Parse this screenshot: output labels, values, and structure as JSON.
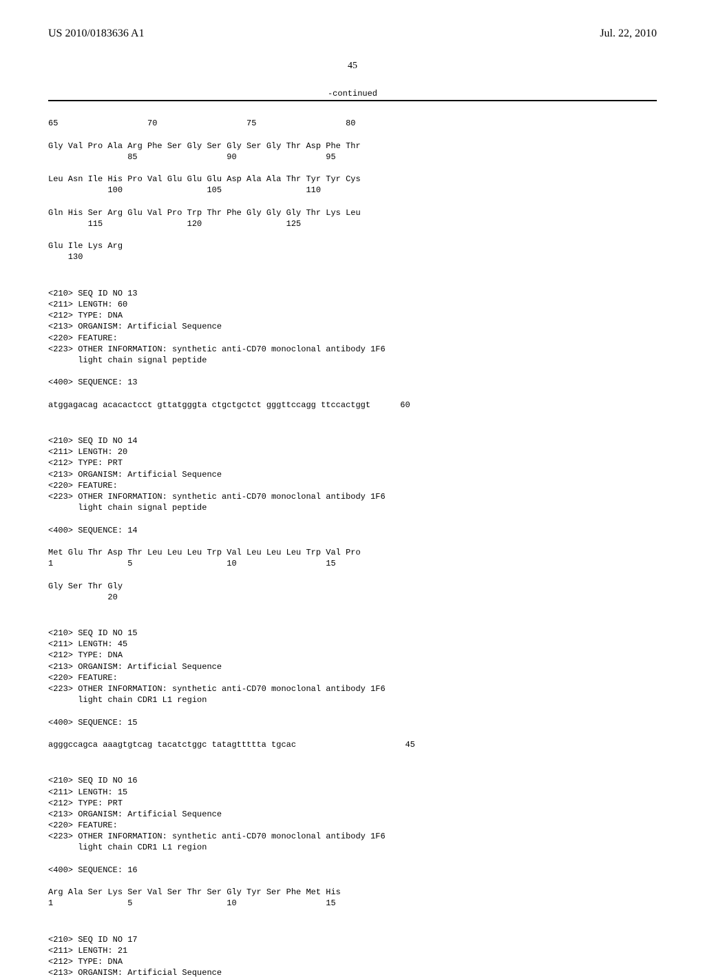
{
  "header": {
    "pub_no": "US 2010/0183636 A1",
    "pub_date": "Jul. 22, 2010"
  },
  "page_number": "45",
  "continued_label": "-continued",
  "seq_continuation": {
    "row1": "65                  70                  75                  80",
    "row2": "Gly Val Pro Ala Arg Phe Ser Gly Ser Gly Ser Gly Thr Asp Phe Thr",
    "row3": "                85                  90                  95",
    "row4": "Leu Asn Ile His Pro Val Glu Glu Glu Asp Ala Ala Thr Tyr Tyr Cys",
    "row5": "            100                 105                 110",
    "row6": "Gln His Ser Arg Glu Val Pro Trp Thr Phe Gly Gly Gly Thr Lys Leu",
    "row7": "        115                 120                 125",
    "row8": "Glu Ile Lys Arg",
    "row9": "    130"
  },
  "seq13": {
    "l1": "<210> SEQ ID NO 13",
    "l2": "<211> LENGTH: 60",
    "l3": "<212> TYPE: DNA",
    "l4": "<213> ORGANISM: Artificial Sequence",
    "l5": "<220> FEATURE:",
    "l6": "<223> OTHER INFORMATION: synthetic anti-CD70 monoclonal antibody 1F6",
    "l7": "      light chain signal peptide",
    "l8": "<400> SEQUENCE: 13",
    "seq": "atggagacag acacactcct gttatgggta ctgctgctct gggttccagg ttccactggt      60"
  },
  "seq14": {
    "l1": "<210> SEQ ID NO 14",
    "l2": "<211> LENGTH: 20",
    "l3": "<212> TYPE: PRT",
    "l4": "<213> ORGANISM: Artificial Sequence",
    "l5": "<220> FEATURE:",
    "l6": "<223> OTHER INFORMATION: synthetic anti-CD70 monoclonal antibody 1F6",
    "l7": "      light chain signal peptide",
    "l8": "<400> SEQUENCE: 14",
    "row1": "Met Glu Thr Asp Thr Leu Leu Leu Trp Val Leu Leu Leu Trp Val Pro",
    "row2": "1               5                   10                  15",
    "row3": "Gly Ser Thr Gly",
    "row4": "            20"
  },
  "seq15": {
    "l1": "<210> SEQ ID NO 15",
    "l2": "<211> LENGTH: 45",
    "l3": "<212> TYPE: DNA",
    "l4": "<213> ORGANISM: Artificial Sequence",
    "l5": "<220> FEATURE:",
    "l6": "<223> OTHER INFORMATION: synthetic anti-CD70 monoclonal antibody 1F6",
    "l7": "      light chain CDR1 L1 region",
    "l8": "<400> SEQUENCE: 15",
    "seq": "agggccagca aaagtgtcag tacatctggc tatagttttta tgcac                      45"
  },
  "seq16": {
    "l1": "<210> SEQ ID NO 16",
    "l2": "<211> LENGTH: 15",
    "l3": "<212> TYPE: PRT",
    "l4": "<213> ORGANISM: Artificial Sequence",
    "l5": "<220> FEATURE:",
    "l6": "<223> OTHER INFORMATION: synthetic anti-CD70 monoclonal antibody 1F6",
    "l7": "      light chain CDR1 L1 region",
    "l8": "<400> SEQUENCE: 16",
    "row1": "Arg Ala Ser Lys Ser Val Ser Thr Ser Gly Tyr Ser Phe Met His",
    "row2": "1               5                   10                  15"
  },
  "seq17": {
    "l1": "<210> SEQ ID NO 17",
    "l2": "<211> LENGTH: 21",
    "l3": "<212> TYPE: DNA",
    "l4": "<213> ORGANISM: Artificial Sequence"
  }
}
